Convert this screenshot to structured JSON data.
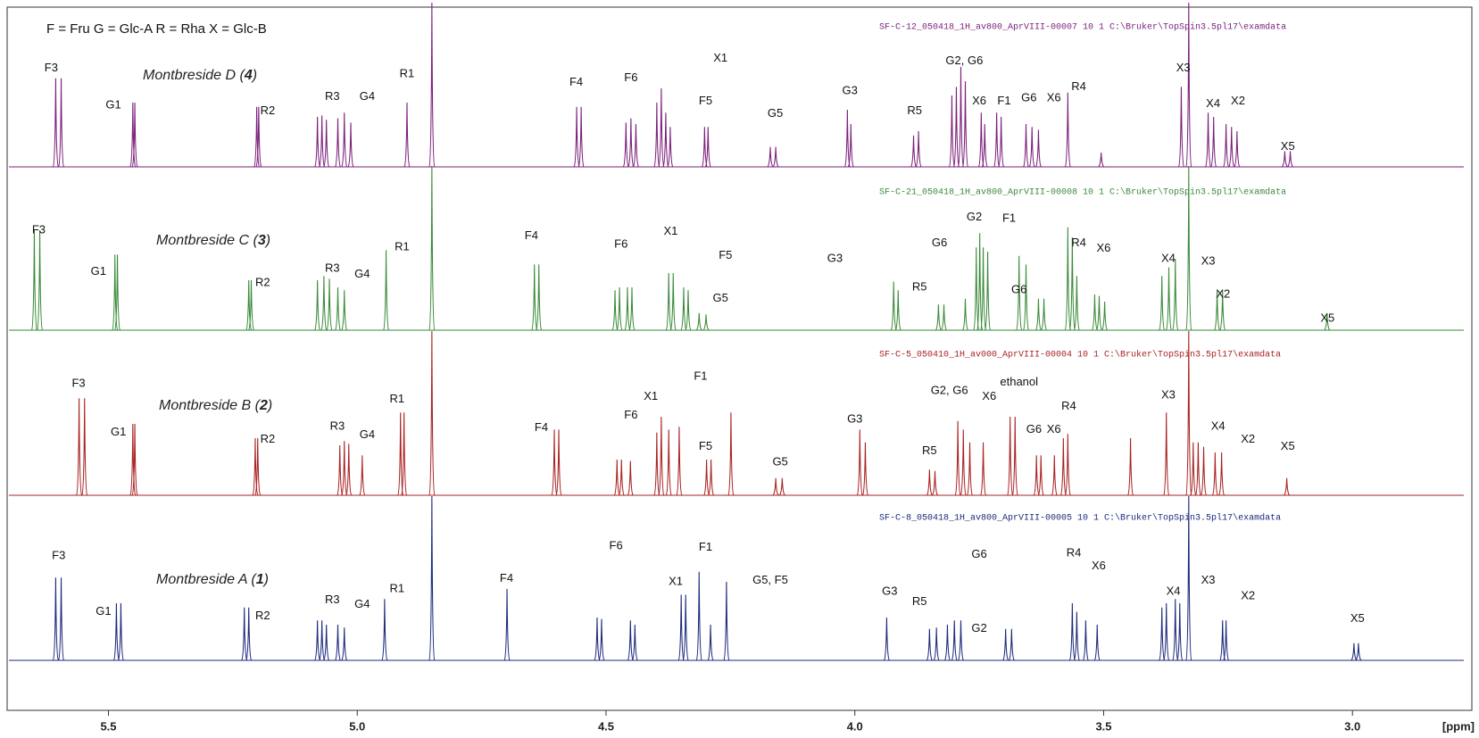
{
  "chart_data": {
    "type": "spectrum",
    "legend_text": "F = Fru   G = Glc-A   R = Rha   X = Glc-B",
    "x_label": "[ppm]",
    "xlim": [
      5.7,
      2.83
    ],
    "xticks": [
      5.5,
      {
        "value": 5,
        "label": "5.0"
      },
      4.5,
      {
        "value": 4,
        "label": "4.0"
      },
      3.5,
      {
        "value": 3,
        "label": "3.0"
      }
    ],
    "ylim": [
      0,
      100
    ],
    "series": [
      {
        "label": [
          "Montbreside D (",
          "4",
          ")"
        ],
        "color": "#7a1f7a",
        "file": "SF-C-12_050418_1H_av800_AprVIII-00007   10   1  C:\\Bruker\\TopSpin3.5pl17\\examdata",
        "x": [
          5.606,
          5.595,
          5.451,
          5.447,
          5.202,
          5.198,
          5.08,
          5.071,
          5.062,
          5.039,
          5.026,
          5.013,
          4.9,
          4.85,
          4.559,
          4.55,
          4.46,
          4.45,
          4.44,
          4.398,
          4.389,
          4.38,
          4.371,
          4.302,
          4.295,
          4.17,
          4.159,
          4.015,
          4.008,
          3.882,
          3.872,
          3.805,
          3.796,
          3.787,
          3.778,
          3.746,
          3.739,
          3.715,
          3.706,
          3.656,
          3.644,
          3.631,
          3.572,
          3.505,
          3.344,
          3.329,
          3.29,
          3.279,
          3.254,
          3.243,
          3.232,
          3.136,
          3.125
        ],
        "values": [
          62,
          62,
          45,
          45,
          42,
          42,
          35,
          36,
          33,
          34,
          38,
          31,
          45,
          115,
          42,
          42,
          31,
          34,
          30,
          45,
          55,
          38,
          28,
          28,
          28,
          14,
          14,
          40,
          30,
          22,
          25,
          50,
          56,
          70,
          60,
          38,
          30,
          38,
          35,
          30,
          28,
          26,
          52,
          10,
          56,
          115,
          38,
          35,
          30,
          28,
          25,
          11,
          11
        ],
        "annotations": [
          {
            "text": "F3",
            "x": 5.615,
            "y": 69
          },
          {
            "text": "G1",
            "x": 5.49,
            "y": 43
          },
          {
            "text": "R2",
            "x": 5.18,
            "y": 39
          },
          {
            "text": "R3",
            "x": 5.05,
            "y": 49
          },
          {
            "text": "G4",
            "x": 4.98,
            "y": 49
          },
          {
            "text": "R1",
            "x": 4.9,
            "y": 65
          },
          {
            "text": "F4",
            "x": 4.56,
            "y": 59
          },
          {
            "text": "F6",
            "x": 4.45,
            "y": 62
          },
          {
            "text": "X1",
            "x": 4.27,
            "y": 76
          },
          {
            "text": "F5",
            "x": 4.3,
            "y": 46
          },
          {
            "text": "G5",
            "x": 4.16,
            "y": 37
          },
          {
            "text": "G3",
            "x": 4.01,
            "y": 53
          },
          {
            "text": "G2, G6",
            "x": 3.78,
            "y": 74
          },
          {
            "text": "R5",
            "x": 3.88,
            "y": 39
          },
          {
            "text": "X6",
            "x": 3.75,
            "y": 46
          },
          {
            "text": "F1",
            "x": 3.7,
            "y": 46
          },
          {
            "text": "G6",
            "x": 3.65,
            "y": 48
          },
          {
            "text": "X6",
            "x": 3.6,
            "y": 48
          },
          {
            "text": "R4",
            "x": 3.55,
            "y": 56
          },
          {
            "text": "X3",
            "x": 3.34,
            "y": 69
          },
          {
            "text": "X4",
            "x": 3.28,
            "y": 44
          },
          {
            "text": "X2",
            "x": 3.23,
            "y": 46
          },
          {
            "text": "X5",
            "x": 3.13,
            "y": 14
          }
        ]
      },
      {
        "label": [
          "Montbreside C (",
          "3",
          ")"
        ],
        "color": "#3a8a3a",
        "file": "SF-C-21_050418_1H_av800_AprVIII-00008   10   1  C:\\Bruker\\TopSpin3.5pl17\\examdata",
        "x": [
          5.649,
          5.638,
          5.487,
          5.482,
          5.218,
          5.213,
          5.08,
          5.067,
          5.056,
          5.039,
          5.026,
          4.942,
          4.85,
          4.644,
          4.635,
          4.482,
          4.473,
          4.457,
          4.448,
          4.374,
          4.365,
          4.344,
          4.335,
          4.313,
          4.299,
          3.922,
          3.913,
          3.832,
          3.821,
          3.778,
          3.756,
          3.749,
          3.742,
          3.733,
          3.67,
          3.656,
          3.631,
          3.62,
          3.572,
          3.563,
          3.554,
          3.518,
          3.509,
          3.498,
          3.329,
          3.383,
          3.369,
          3.356,
          3.272,
          3.261,
          3.051
        ],
        "values": [
          70,
          70,
          53,
          53,
          35,
          35,
          35,
          38,
          36,
          30,
          28,
          56,
          115,
          46,
          46,
          28,
          30,
          30,
          30,
          40,
          40,
          30,
          28,
          12,
          11,
          34,
          28,
          18,
          18,
          22,
          58,
          68,
          58,
          55,
          52,
          46,
          22,
          22,
          72,
          65,
          38,
          25,
          24,
          20,
          115,
          38,
          44,
          50,
          28,
          28,
          12
        ],
        "annotations": [
          {
            "text": "F3",
            "x": 5.64,
            "y": 70
          },
          {
            "text": "G1",
            "x": 5.52,
            "y": 41
          },
          {
            "text": "R2",
            "x": 5.19,
            "y": 33
          },
          {
            "text": "R3",
            "x": 5.05,
            "y": 43
          },
          {
            "text": "G4",
            "x": 4.99,
            "y": 39
          },
          {
            "text": "R1",
            "x": 4.91,
            "y": 58
          },
          {
            "text": "F4",
            "x": 4.65,
            "y": 66
          },
          {
            "text": "F6",
            "x": 4.47,
            "y": 60
          },
          {
            "text": "X1",
            "x": 4.37,
            "y": 69
          },
          {
            "text": "F5",
            "x": 4.26,
            "y": 52
          },
          {
            "text": "G5",
            "x": 4.27,
            "y": 22
          },
          {
            "text": "G3",
            "x": 4.04,
            "y": 50
          },
          {
            "text": "R5",
            "x": 3.87,
            "y": 30
          },
          {
            "text": "G6",
            "x": 3.83,
            "y": 61
          },
          {
            "text": "G2",
            "x": 3.76,
            "y": 79
          },
          {
            "text": "F1",
            "x": 3.69,
            "y": 78
          },
          {
            "text": "G6",
            "x": 3.67,
            "y": 28
          },
          {
            "text": "R4",
            "x": 3.55,
            "y": 61
          },
          {
            "text": "X6",
            "x": 3.5,
            "y": 57
          },
          {
            "text": "X4",
            "x": 3.37,
            "y": 50
          },
          {
            "text": "X3",
            "x": 3.29,
            "y": 48
          },
          {
            "text": "X2",
            "x": 3.26,
            "y": 25
          },
          {
            "text": "X5",
            "x": 3.05,
            "y": 8
          }
        ]
      },
      {
        "label": [
          "Montbreside B (",
          "2",
          ")"
        ],
        "color": "#a82222",
        "file": "SF-C-5_050410_1H_av000_AprVIII-00004   10   1  C:\\Bruker\\TopSpin3.5pl17\\examdata",
        "x": [
          5.559,
          5.548,
          5.451,
          5.447,
          5.205,
          5.2,
          5.035,
          5.026,
          5.017,
          4.99,
          4.913,
          4.906,
          4.85,
          4.604,
          4.595,
          4.478,
          4.469,
          4.451,
          4.398,
          4.389,
          4.374,
          4.353,
          4.249,
          4.298,
          4.289,
          4.159,
          4.146,
          3.99,
          3.979,
          3.85,
          3.839,
          3.793,
          3.782,
          3.769,
          3.742,
          3.688,
          3.678,
          3.635,
          3.626,
          3.599,
          3.581,
          3.572,
          3.446,
          3.329,
          3.374,
          3.32,
          3.31,
          3.299,
          3.276,
          3.263,
          3.132
        ],
        "values": [
          68,
          68,
          50,
          50,
          40,
          40,
          35,
          38,
          36,
          28,
          58,
          58,
          115,
          46,
          46,
          25,
          25,
          24,
          44,
          55,
          46,
          48,
          58,
          25,
          25,
          12,
          12,
          46,
          37,
          18,
          17,
          52,
          46,
          37,
          37,
          55,
          55,
          28,
          28,
          28,
          40,
          43,
          40,
          115,
          58,
          37,
          37,
          34,
          30,
          30,
          12
        ],
        "annotations": [
          {
            "text": "F3",
            "x": 5.56,
            "y": 78
          },
          {
            "text": "G1",
            "x": 5.48,
            "y": 44
          },
          {
            "text": "R2",
            "x": 5.18,
            "y": 39
          },
          {
            "text": "R3",
            "x": 5.04,
            "y": 48
          },
          {
            "text": "G4",
            "x": 4.98,
            "y": 42
          },
          {
            "text": "R1",
            "x": 4.92,
            "y": 67
          },
          {
            "text": "F4",
            "x": 4.63,
            "y": 47
          },
          {
            "text": "F6",
            "x": 4.45,
            "y": 56
          },
          {
            "text": "X1",
            "x": 4.41,
            "y": 69
          },
          {
            "text": "F1",
            "x": 4.31,
            "y": 83
          },
          {
            "text": "F5",
            "x": 4.3,
            "y": 34
          },
          {
            "text": "G5",
            "x": 4.15,
            "y": 23
          },
          {
            "text": "G3",
            "x": 4.0,
            "y": 53
          },
          {
            "text": "G2, G6",
            "x": 3.81,
            "y": 73
          },
          {
            "text": "R5",
            "x": 3.85,
            "y": 31
          },
          {
            "text": "X6",
            "x": 3.73,
            "y": 69
          },
          {
            "text": "ethanol",
            "x": 3.67,
            "y": 79
          },
          {
            "text": "G6",
            "x": 3.64,
            "y": 46
          },
          {
            "text": "X6",
            "x": 3.6,
            "y": 46
          },
          {
            "text": "R4",
            "x": 3.57,
            "y": 62
          },
          {
            "text": "X3",
            "x": 3.37,
            "y": 70
          },
          {
            "text": "X4",
            "x": 3.27,
            "y": 48
          },
          {
            "text": "X2",
            "x": 3.21,
            "y": 39
          },
          {
            "text": "X5",
            "x": 3.13,
            "y": 34
          }
        ]
      },
      {
        "label": [
          "Montbreside  A (",
          "1",
          ")"
        ],
        "color": "#1c2a7a",
        "file": "SF-C-8_050418_1H_av800_AprVIII-00005   10   1  C:\\Bruker\\TopSpin3.5pl17\\examdata",
        "x": [
          5.606,
          5.595,
          5.484,
          5.475,
          5.227,
          5.218,
          5.08,
          5.071,
          5.062,
          5.039,
          5.026,
          4.945,
          4.85,
          4.699,
          4.518,
          4.509,
          4.451,
          4.442,
          4.349,
          4.34,
          4.313,
          4.258,
          4.29,
          3.936,
          3.85,
          3.836,
          3.814,
          3.8,
          3.787,
          3.697,
          3.685,
          3.563,
          3.554,
          3.536,
          3.513,
          3.329,
          3.383,
          3.374,
          3.356,
          3.347,
          3.261,
          3.254,
          2.997,
          2.988
        ],
        "values": [
          58,
          58,
          40,
          40,
          37,
          37,
          28,
          28,
          25,
          25,
          23,
          43,
          115,
          50,
          30,
          29,
          28,
          25,
          46,
          46,
          62,
          55,
          25,
          30,
          22,
          23,
          25,
          28,
          28,
          22,
          22,
          40,
          34,
          28,
          25,
          115,
          37,
          40,
          43,
          40,
          28,
          28,
          12,
          12
        ],
        "annotations": [
          {
            "text": "F3",
            "x": 5.6,
            "y": 73
          },
          {
            "text": "G1",
            "x": 5.51,
            "y": 34
          },
          {
            "text": "R2",
            "x": 5.19,
            "y": 31
          },
          {
            "text": "R3",
            "x": 5.05,
            "y": 42
          },
          {
            "text": "G4",
            "x": 4.99,
            "y": 39
          },
          {
            "text": "R1",
            "x": 4.92,
            "y": 50
          },
          {
            "text": "F4",
            "x": 4.7,
            "y": 57
          },
          {
            "text": "F6",
            "x": 4.48,
            "y": 80
          },
          {
            "text": "X1",
            "x": 4.36,
            "y": 55
          },
          {
            "text": "F1",
            "x": 4.3,
            "y": 79
          },
          {
            "text": "G5, F5",
            "x": 4.17,
            "y": 56
          },
          {
            "text": "G3",
            "x": 3.93,
            "y": 48
          },
          {
            "text": "G6",
            "x": 3.75,
            "y": 74
          },
          {
            "text": "R5",
            "x": 3.87,
            "y": 41
          },
          {
            "text": "G2",
            "x": 3.75,
            "y": 22
          },
          {
            "text": "R4",
            "x": 3.56,
            "y": 75
          },
          {
            "text": "X6",
            "x": 3.51,
            "y": 66
          },
          {
            "text": "X4",
            "x": 3.36,
            "y": 48
          },
          {
            "text": "X3",
            "x": 3.29,
            "y": 56
          },
          {
            "text": "X2",
            "x": 3.21,
            "y": 45
          },
          {
            "text": "X5",
            "x": 2.99,
            "y": 29
          }
        ]
      }
    ]
  }
}
